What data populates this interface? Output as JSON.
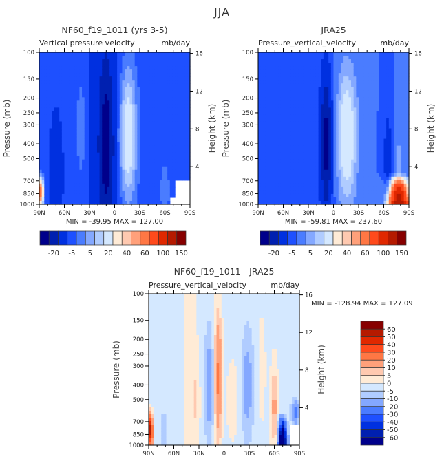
{
  "figure_title": "JJA",
  "chart_data": [
    {
      "type": "heatmap",
      "title": "NF60_f19_1011 (yrs 3-5)",
      "subtitle_left": "Vertical pressure velocity",
      "subtitle_right": "mb/day",
      "xlabel": "",
      "ylabel": "Pressure (mb)",
      "ylabel_right": "Height (km)",
      "x_ticks": [
        "90N",
        "60N",
        "30N",
        "0",
        "30S",
        "60S",
        "90S"
      ],
      "y_ticks": [
        "100",
        "150",
        "200",
        "250",
        "300",
        "400",
        "500",
        "700",
        "850",
        "1000"
      ],
      "y_ticks_right": [
        "4",
        "8",
        "12",
        "16"
      ],
      "xlim": [
        "90N",
        "90S"
      ],
      "ylim": [
        1000,
        100
      ],
      "min_label": "MIN = -39.95",
      "max_label": "MAX = 127.00",
      "stats": {
        "min": -39.95,
        "max": 127.0
      },
      "colorbar_labels": [
        "-20",
        "-5",
        "5",
        "20",
        "40",
        "60",
        "100",
        "150"
      ],
      "features": [
        {
          "lat": 10,
          "desc": "strong descent core (darkest blue) 30N–0, 250–1000 mb"
        },
        {
          "lat": -15,
          "desc": "ascent region (light blue to cream) 0–30S, max near 400 mb"
        },
        {
          "lat": 88,
          "desc": "red near 90N at 850 mb"
        },
        {
          "lat": -80,
          "desc": "white missing data near 90S below 700 mb"
        }
      ]
    },
    {
      "type": "heatmap",
      "title": "JRA25",
      "subtitle_left": "Pressure_vertical_velocity",
      "subtitle_right": "mb/day",
      "ylabel": "Pressure (mb)",
      "ylabel_right": "Height (km)",
      "x_ticks": [
        "90N",
        "60N",
        "30N",
        "0",
        "30S",
        "60S",
        "90S"
      ],
      "y_ticks": [
        "100",
        "150",
        "200",
        "250",
        "300",
        "400",
        "500",
        "700",
        "850",
        "1000"
      ],
      "y_ticks_right": [
        "4",
        "8",
        "12",
        "16"
      ],
      "ylim": [
        1000,
        100
      ],
      "min_label": "MIN = -59.81",
      "max_label": "MAX = 237.60",
      "stats": {
        "min": -59.81,
        "max": 237.6
      },
      "colorbar_labels": [
        "-20",
        "-5",
        "5",
        "20",
        "40",
        "60",
        "100",
        "150"
      ],
      "features": [
        {
          "lat": 10,
          "desc": "strong descent core 30N–0, 200–1000 mb"
        },
        {
          "lat": -15,
          "desc": "ascent region 0–30S"
        },
        {
          "lat": -78,
          "desc": "strong red/dark red near 60S–90S below 700 mb"
        }
      ]
    },
    {
      "type": "heatmap",
      "title": "NF60_f19_1011 - JRA25",
      "subtitle_left": "Pressure_vertical_velocity",
      "subtitle_right": "mb/day",
      "ylabel": "Pressure (mb)",
      "ylabel_right": "Height (km)",
      "x_ticks": [
        "90N",
        "60N",
        "30N",
        "0",
        "30S",
        "60S",
        "90S"
      ],
      "y_ticks": [
        "100",
        "150",
        "200",
        "250",
        "300",
        "400",
        "500",
        "700",
        "850",
        "1000"
      ],
      "y_ticks_right": [
        "4",
        "8",
        "12",
        "16"
      ],
      "ylim": [
        1000,
        100
      ],
      "min_label": "MIN = -128.94",
      "max_label": "MAX = 127.09",
      "stats": {
        "min": -128.94,
        "max": 127.09
      },
      "colorbar_labels": [
        "60",
        "50",
        "40",
        "30",
        "20",
        "10",
        "5",
        "0",
        "-5",
        "-10",
        "-20",
        "-30",
        "-40",
        "-50",
        "-60"
      ]
    }
  ],
  "colors": {
    "scale_a": [
      "#00008b",
      "#0020b0",
      "#0030e0",
      "#1e50ff",
      "#4a7cff",
      "#84a8ff",
      "#b0ccff",
      "#d4e8ff",
      "#ffebd6",
      "#ffc9b0",
      "#ffa07a",
      "#ff7744",
      "#ff4a1c",
      "#e02800",
      "#b51a00",
      "#870000"
    ],
    "frame": "#000000"
  }
}
